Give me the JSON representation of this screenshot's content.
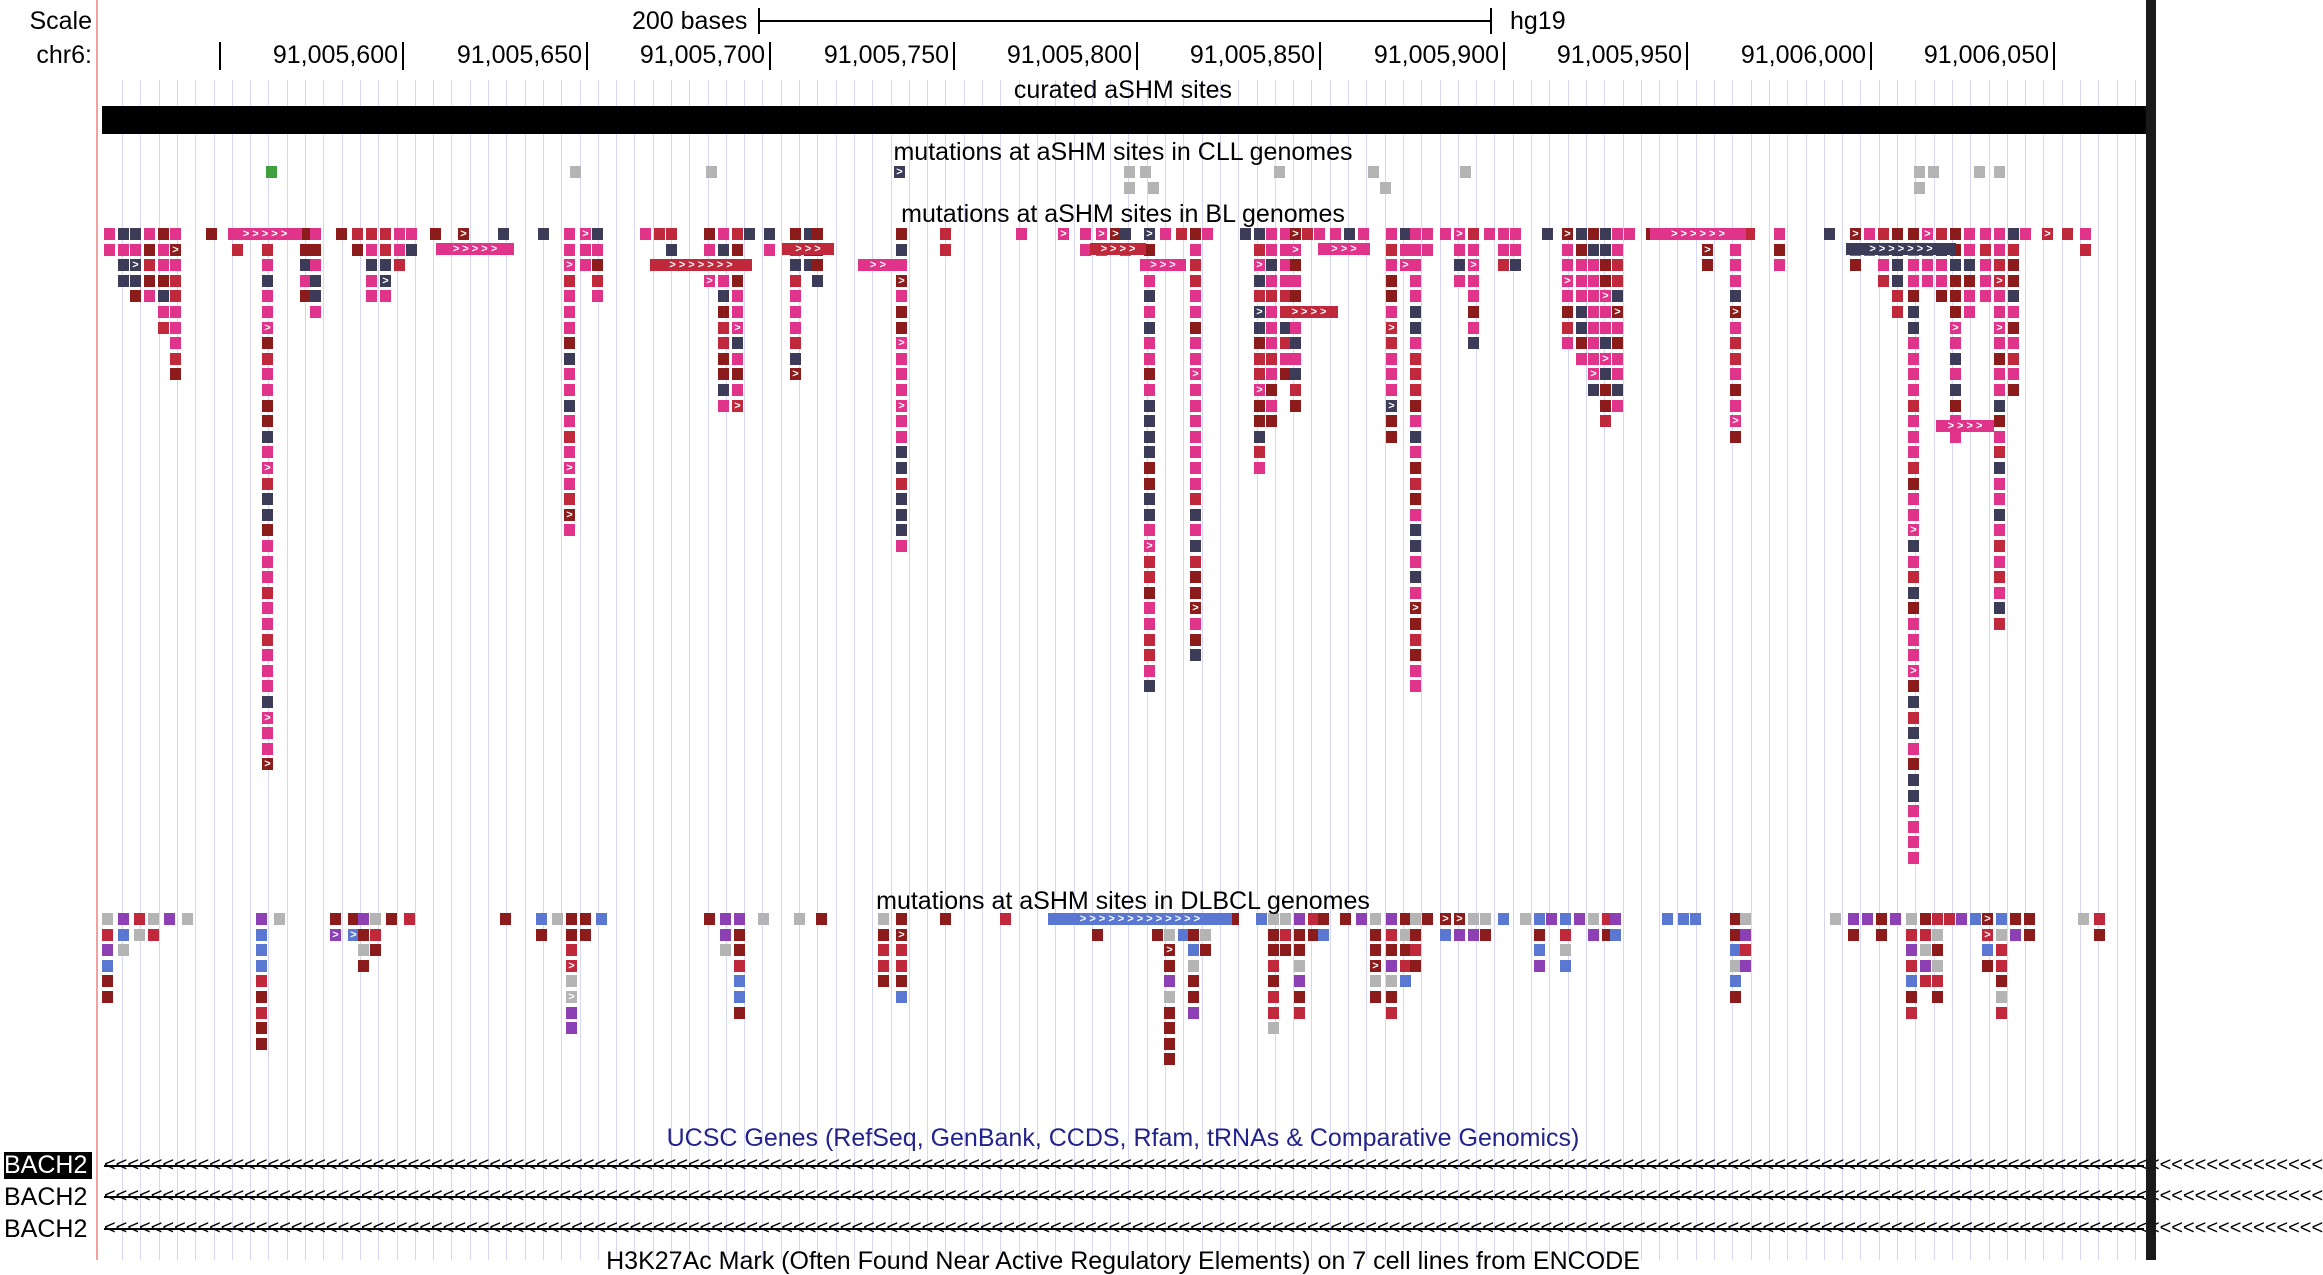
{
  "browser": {
    "scale_label": "Scale",
    "chrom_label": "chr6:",
    "scalebar": {
      "text": "200 bases",
      "assembly": "hg19"
    },
    "ruler_ticks": [
      "91,005,600",
      "91,005,650",
      "91,005,700",
      "91,005,750",
      "91,005,800",
      "91,005,850",
      "91,005,900",
      "91,005,950",
      "91,006,000",
      "91,006,050"
    ]
  },
  "tracks": {
    "curated": {
      "title": "curated aSHM sites"
    },
    "cll": {
      "title": "mutations at aSHM sites in CLL genomes"
    },
    "bl": {
      "title": "mutations at aSHM sites in BL genomes"
    },
    "dlbcl": {
      "title": "mutations at aSHM sites in DLBCL genomes"
    },
    "genes": {
      "title": "UCSC Genes (RefSeq, GenBank, CCDS, Rfam, tRNAs & Comparative Genomics)",
      "items": [
        {
          "label": "BACH2",
          "selected": true
        },
        {
          "label": "BACH2",
          "selected": false
        },
        {
          "label": "BACH2",
          "selected": false
        }
      ]
    },
    "next": {
      "title": "H3K27Ac Mark (Often Found Near Active Regulatory Elements) on 7 cell lines from ENCODE"
    }
  },
  "colors": {
    "pink": "#e0338a",
    "crimson": "#c0283c",
    "darkred": "#8c1c1c",
    "navy": "#3c3c58",
    "gray": "#b4b4b4",
    "green": "#40a040",
    "blue": "#5a78d2",
    "purple": "#8c40b4",
    "lightblue": "#a8cce0",
    "salmon": "#f0a0a0",
    "black": "#000000"
  }
}
